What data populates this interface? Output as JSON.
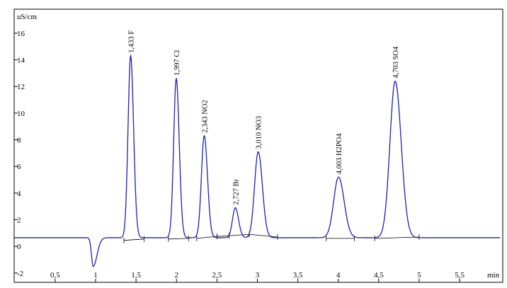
{
  "chart_data": {
    "type": "line",
    "title": "",
    "ylabel": "uS/cm",
    "xlabel": "min",
    "xlim": [
      0,
      6.0
    ],
    "ylim": [
      -2.7,
      17.8
    ],
    "x_ticks": [
      {
        "value": 0.5,
        "label": "0,5"
      },
      {
        "value": 1.0,
        "label": "1"
      },
      {
        "value": 1.5,
        "label": "1,5"
      },
      {
        "value": 2.0,
        "label": "2"
      },
      {
        "value": 2.5,
        "label": "2,5"
      },
      {
        "value": 3.0,
        "label": "3"
      },
      {
        "value": 3.5,
        "label": "3,5"
      },
      {
        "value": 4.0,
        "label": "4"
      },
      {
        "value": 4.5,
        "label": "4,5"
      },
      {
        "value": 5.0,
        "label": "5"
      },
      {
        "value": 5.5,
        "label": "5,5"
      }
    ],
    "y_ticks": [
      {
        "value": -2,
        "label": "-2"
      },
      {
        "value": 0,
        "label": "0"
      },
      {
        "value": 2,
        "label": "2"
      },
      {
        "value": 4,
        "label": "4"
      },
      {
        "value": 6,
        "label": "6"
      },
      {
        "value": 8,
        "label": "8"
      },
      {
        "value": 10,
        "label": "10"
      },
      {
        "value": 12,
        "label": "12"
      },
      {
        "value": 14,
        "label": "14"
      },
      {
        "value": 16,
        "label": "16"
      }
    ],
    "baseline": 0.65,
    "x_start": -0.5,
    "x_end": 6.0,
    "dip": {
      "x": 0.97,
      "y": -1.5,
      "width": 0.03
    },
    "peaks": [
      {
        "x": 1.433,
        "height": 14.3,
        "width": 0.032,
        "label": "1,433 F"
      },
      {
        "x": 1.997,
        "height": 12.6,
        "width": 0.032,
        "label": "1,997 Cl"
      },
      {
        "x": 2.343,
        "height": 8.3,
        "width": 0.035,
        "label": "2,343 NO2"
      },
      {
        "x": 2.727,
        "height": 2.9,
        "width": 0.035,
        "label": "2,727 Br"
      },
      {
        "x": 3.01,
        "height": 7.1,
        "width": 0.045,
        "label": "3,010 NO3"
      },
      {
        "x": 4.003,
        "height": 5.2,
        "width": 0.06,
        "label": "4,003 H2PO4"
      },
      {
        "x": 4.703,
        "height": 12.4,
        "width": 0.065,
        "label": "4,703 SO4"
      }
    ],
    "integration_baselines": [
      {
        "x1": 1.35,
        "y1": 0.45,
        "x2": 1.6,
        "y2": 0.55
      },
      {
        "x1": 1.9,
        "y1": 0.55,
        "x2": 2.15,
        "y2": 0.6
      },
      {
        "x1": 2.25,
        "y1": 0.6,
        "x2": 2.5,
        "y2": 0.75
      },
      {
        "x1": 2.5,
        "y1": 0.75,
        "x2": 2.65,
        "y2": 0.8
      },
      {
        "x1": 2.65,
        "y1": 0.8,
        "x2": 2.9,
        "y2": 0.9
      },
      {
        "x1": 2.9,
        "y1": 0.9,
        "x2": 3.25,
        "y2": 0.7
      },
      {
        "x1": 3.85,
        "y1": 0.6,
        "x2": 4.2,
        "y2": 0.6
      },
      {
        "x1": 4.45,
        "y1": 0.6,
        "x2": 5.0,
        "y2": 0.7
      }
    ],
    "colors": {
      "trace": "#1f1fb4",
      "integration": "#000000",
      "frame": "#000000"
    }
  }
}
